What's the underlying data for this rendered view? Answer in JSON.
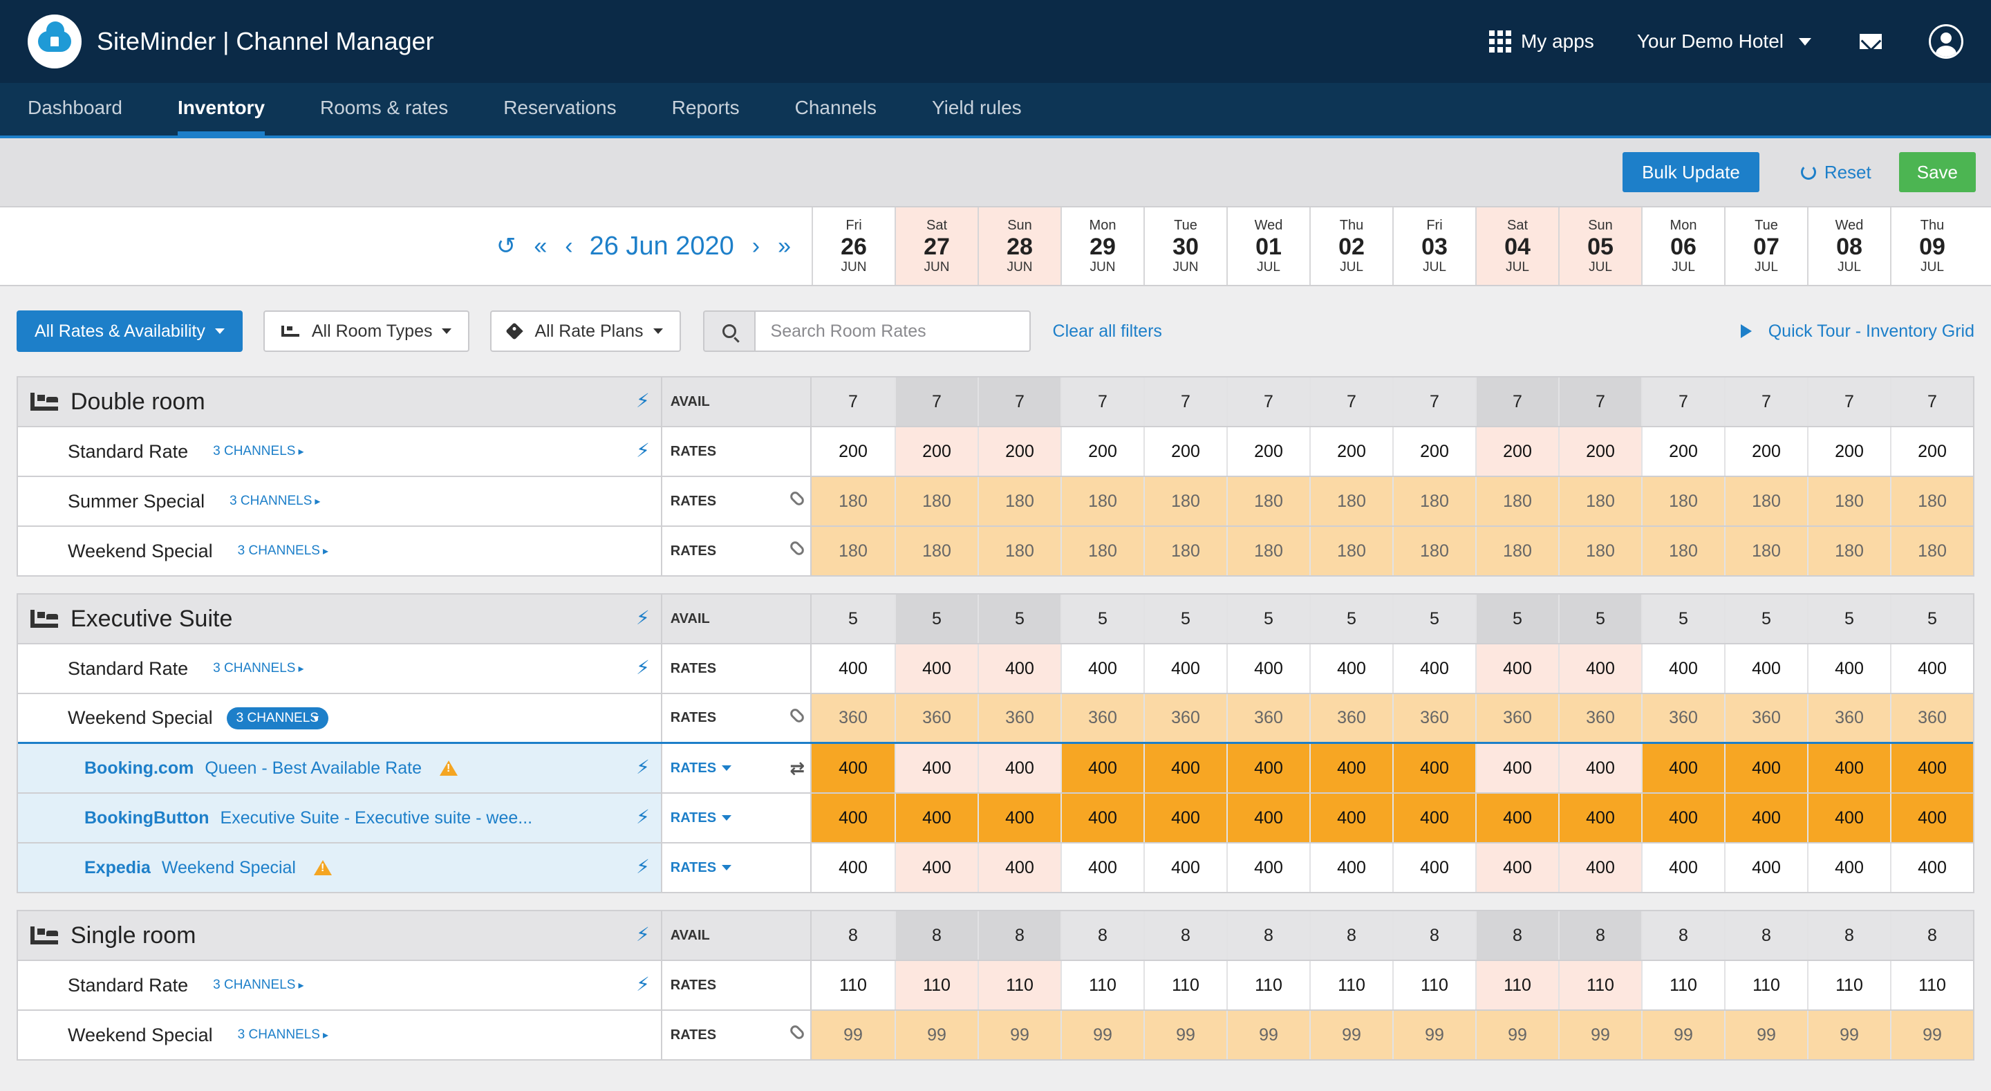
{
  "app": {
    "title": "SiteMinder | Channel Manager"
  },
  "topbar": {
    "my_apps": "My apps",
    "hotel": "Your Demo Hotel"
  },
  "nav": {
    "items": [
      "Dashboard",
      "Inventory",
      "Rooms & rates",
      "Reservations",
      "Reports",
      "Channels",
      "Yield rules"
    ],
    "active": "Inventory"
  },
  "actions": {
    "bulk_update": "Bulk Update",
    "reset": "Reset",
    "save": "Save"
  },
  "dates": {
    "current": "26 Jun 2020",
    "days": [
      {
        "dow": "Fri",
        "day": "26",
        "mon": "JUN"
      },
      {
        "dow": "Sat",
        "day": "27",
        "mon": "JUN"
      },
      {
        "dow": "Sun",
        "day": "28",
        "mon": "JUN"
      },
      {
        "dow": "Mon",
        "day": "29",
        "mon": "JUN"
      },
      {
        "dow": "Tue",
        "day": "30",
        "mon": "JUN"
      },
      {
        "dow": "Wed",
        "day": "01",
        "mon": "JUL"
      },
      {
        "dow": "Thu",
        "day": "02",
        "mon": "JUL"
      },
      {
        "dow": "Fri",
        "day": "03",
        "mon": "JUL"
      },
      {
        "dow": "Sat",
        "day": "04",
        "mon": "JUL"
      },
      {
        "dow": "Sun",
        "day": "05",
        "mon": "JUL"
      },
      {
        "dow": "Mon",
        "day": "06",
        "mon": "JUL"
      },
      {
        "dow": "Tue",
        "day": "07",
        "mon": "JUL"
      },
      {
        "dow": "Wed",
        "day": "08",
        "mon": "JUL"
      },
      {
        "dow": "Thu",
        "day": "09",
        "mon": "JUL"
      }
    ]
  },
  "filters": {
    "view": "All Rates & Availability",
    "room_types": "All Room Types",
    "rate_plans": "All Rate Plans",
    "search_placeholder": "Search Room Rates",
    "clear": "Clear all filters",
    "tour": "Quick Tour - Inventory Grid"
  },
  "labels": {
    "avail": "AVAIL",
    "rates": "RATES",
    "channels": "3 CHANNELS"
  },
  "rooms": [
    {
      "name": "Double room",
      "avail": [
        "7",
        "7",
        "7",
        "7",
        "7",
        "7",
        "7",
        "7",
        "7",
        "7",
        "7",
        "7",
        "7",
        "7"
      ],
      "rates": [
        {
          "name": "Standard Rate",
          "values": [
            "200",
            "200",
            "200",
            "200",
            "200",
            "200",
            "200",
            "200",
            "200",
            "200",
            "200",
            "200",
            "200",
            "200"
          ],
          "derived": false
        },
        {
          "name": "Summer Special",
          "values": [
            "180",
            "180",
            "180",
            "180",
            "180",
            "180",
            "180",
            "180",
            "180",
            "180",
            "180",
            "180",
            "180",
            "180"
          ],
          "derived": true
        },
        {
          "name": "Weekend Special",
          "values": [
            "180",
            "180",
            "180",
            "180",
            "180",
            "180",
            "180",
            "180",
            "180",
            "180",
            "180",
            "180",
            "180",
            "180"
          ],
          "derived": true
        }
      ]
    },
    {
      "name": "Executive Suite",
      "avail": [
        "5",
        "5",
        "5",
        "5",
        "5",
        "5",
        "5",
        "5",
        "5",
        "5",
        "5",
        "5",
        "5",
        "5"
      ],
      "rates": [
        {
          "name": "Standard Rate",
          "values": [
            "400",
            "400",
            "400",
            "400",
            "400",
            "400",
            "400",
            "400",
            "400",
            "400",
            "400",
            "400",
            "400",
            "400"
          ],
          "derived": false
        },
        {
          "name": "Weekend Special",
          "values": [
            "360",
            "360",
            "360",
            "360",
            "360",
            "360",
            "360",
            "360",
            "360",
            "360",
            "360",
            "360",
            "360",
            "360"
          ],
          "derived": true,
          "expanded": true,
          "channels": [
            {
              "channel": "Booking.com",
              "rate": "Queen - Best Available Rate",
              "warning": true,
              "values": [
                "400",
                "400",
                "400",
                "400",
                "400",
                "400",
                "400",
                "400",
                "400",
                "400",
                "400",
                "400",
                "400",
                "400"
              ],
              "hot": [
                true,
                false,
                false,
                true,
                true,
                true,
                true,
                true,
                false,
                false,
                true,
                true,
                true,
                true
              ]
            },
            {
              "channel": "BookingButton",
              "rate": "Executive Suite - Executive suite - wee...",
              "warning": false,
              "values": [
                "400",
                "400",
                "400",
                "400",
                "400",
                "400",
                "400",
                "400",
                "400",
                "400",
                "400",
                "400",
                "400",
                "400"
              ],
              "hot": [
                true,
                true,
                true,
                true,
                true,
                true,
                true,
                true,
                true,
                true,
                true,
                true,
                true,
                true
              ]
            },
            {
              "channel": "Expedia",
              "rate": "Weekend Special",
              "warning": true,
              "values": [
                "400",
                "400",
                "400",
                "400",
                "400",
                "400",
                "400",
                "400",
                "400",
                "400",
                "400",
                "400",
                "400",
                "400"
              ],
              "hot": [
                false,
                false,
                false,
                false,
                false,
                false,
                false,
                false,
                false,
                false,
                false,
                false,
                false,
                false
              ]
            }
          ]
        }
      ]
    },
    {
      "name": "Single room",
      "avail": [
        "8",
        "8",
        "8",
        "8",
        "8",
        "8",
        "8",
        "8",
        "8",
        "8",
        "8",
        "8",
        "8",
        "8"
      ],
      "rates": [
        {
          "name": "Standard Rate",
          "values": [
            "110",
            "110",
            "110",
            "110",
            "110",
            "110",
            "110",
            "110",
            "110",
            "110",
            "110",
            "110",
            "110",
            "110"
          ],
          "derived": false
        },
        {
          "name": "Weekend Special",
          "values": [
            "99",
            "99",
            "99",
            "99",
            "99",
            "99",
            "99",
            "99",
            "99",
            "99",
            "99",
            "99",
            "99",
            "99"
          ],
          "derived": true
        }
      ]
    }
  ],
  "colors": {
    "navy": "#0b2a47",
    "blue": "#1d7fc9",
    "green": "#4cb552",
    "orange": "#f7a623",
    "derived": "#fbd9a5",
    "weekend": "#fde7df"
  }
}
